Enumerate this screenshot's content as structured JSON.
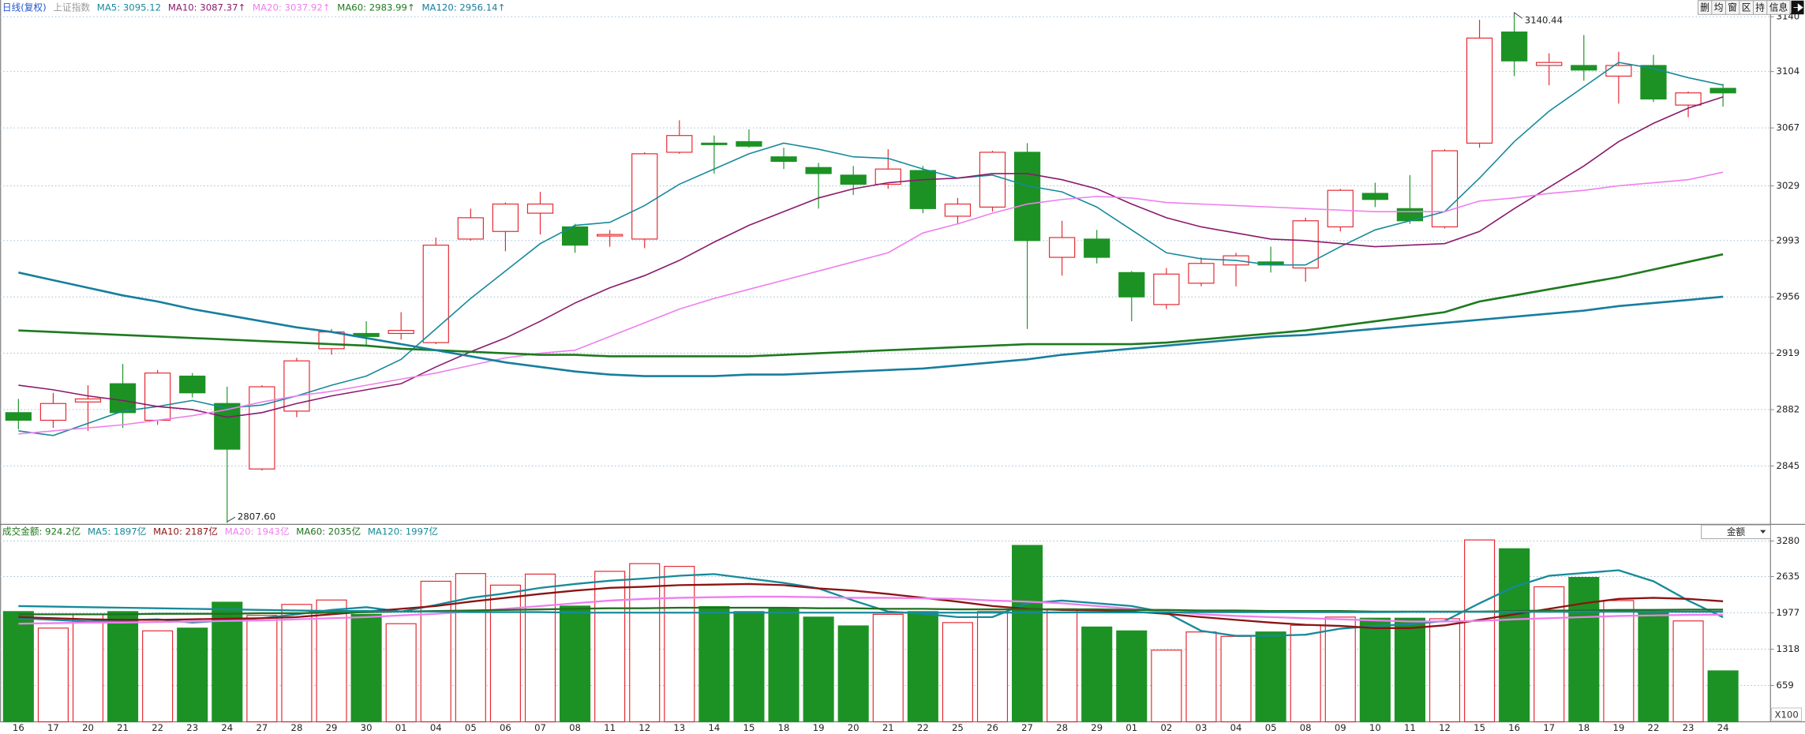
{
  "toolbar": {
    "buttons": [
      "删",
      "均",
      "窗",
      "区",
      "持",
      "信息"
    ]
  },
  "chart_data": [
    {
      "type": "candlestick",
      "period": "日线(复权)",
      "index_name": "上证指数",
      "categories": [
        "16",
        "17",
        "20",
        "21",
        "22",
        "23",
        "24",
        "27",
        "28",
        "29",
        "30",
        "01",
        "04",
        "05",
        "06",
        "07",
        "08",
        "11",
        "12",
        "13",
        "14",
        "15",
        "18",
        "19",
        "20",
        "21",
        "22",
        "25",
        "26",
        "27",
        "28",
        "29",
        "01",
        "02",
        "03",
        "04",
        "05",
        "08",
        "09",
        "10",
        "11",
        "12",
        "15",
        "16",
        "17",
        "18",
        "19",
        "22",
        "23",
        "24"
      ],
      "open": [
        2880,
        2875,
        2887,
        2899,
        2875,
        2904,
        2886,
        2843,
        2881,
        2922,
        2932,
        2932,
        2926,
        2994,
        2999,
        3011,
        3002,
        2996,
        2994,
        3051,
        3057,
        3058,
        3048,
        3041,
        3036,
        3030,
        3039,
        3009,
        3015,
        3051,
        2982,
        2994,
        2972,
        2951,
        2965,
        2977,
        2979,
        2975,
        3002,
        3024,
        3014,
        3002,
        3057,
        3130,
        3108,
        3108,
        3101,
        3108,
        3082,
        3093
      ],
      "high": [
        2889,
        2893,
        2898,
        2912,
        2908,
        2906,
        2897,
        2898,
        2916,
        2935,
        2940,
        2946,
        2995,
        3014,
        3018,
        3025,
        3004,
        3000,
        3051,
        3072,
        3062,
        3066,
        3054,
        3044,
        3042,
        3053,
        3042,
        3021,
        3052,
        3057,
        3006,
        3000,
        2973,
        2975,
        2982,
        2985,
        2989,
        3008,
        3027,
        3031,
        3036,
        3053,
        3138,
        3140.44,
        3116,
        3128,
        3117,
        3115,
        3091,
        3096
      ],
      "low": [
        2869,
        2870,
        2868,
        2870,
        2872,
        2890,
        2807.6,
        2842,
        2877,
        2918,
        2924,
        2928,
        2925,
        2993,
        2986,
        2997,
        2985,
        2989,
        2988,
        3050,
        3037,
        3054,
        3040,
        3014,
        3023,
        3027,
        3011,
        3004,
        3012,
        2935,
        2970,
        2978,
        2940,
        2948,
        2963,
        2963,
        2972,
        2966,
        2999,
        3015,
        3004,
        3001,
        3054,
        3101,
        3095,
        3098,
        3083,
        3084,
        3074,
        3081
      ],
      "close": [
        2875,
        2886,
        2889,
        2880,
        2906,
        2893,
        2856,
        2897,
        2914,
        2933,
        2930,
        2934,
        2990,
        3008,
        3017,
        3017,
        2990,
        2997,
        3050,
        3062,
        3056,
        3055,
        3045,
        3037,
        3030,
        3040,
        3014,
        3017,
        3051,
        2993,
        2995,
        2982,
        2956,
        2971,
        2978,
        2983,
        2977,
        3006,
        3026,
        3020,
        3006,
        3052,
        3126,
        3111,
        3110,
        3105,
        3108,
        3086,
        3090,
        3090
      ],
      "low_labels": [
        null,
        null,
        null,
        null,
        null,
        null,
        "2807.60",
        null,
        null,
        null,
        null,
        null,
        null,
        null,
        null,
        null,
        null,
        null,
        null,
        null,
        null,
        null,
        null,
        null,
        null,
        null,
        null,
        null,
        null,
        null,
        null,
        null,
        null,
        null,
        null,
        null,
        null,
        null,
        null,
        null,
        null,
        null,
        null,
        null,
        null,
        null,
        null,
        null,
        null,
        null
      ],
      "up_color": "#e3262f",
      "down_color": "#1c9224",
      "ylim": [
        2807,
        3151
      ],
      "yticks": [
        2845,
        2882,
        2919,
        2956,
        2993,
        3029,
        3067,
        3104,
        3140
      ],
      "grid": true,
      "series": [
        {
          "name": "MA5: 3095.12",
          "color": "#178a9a",
          "values": [
            2868,
            2865,
            2873,
            2881,
            2884,
            2888,
            2883,
            2885,
            2891,
            2898,
            2904,
            2915,
            2935,
            2955,
            2973,
            2991,
            3003,
            3005,
            3016,
            3030,
            3040,
            3050,
            3057,
            3053,
            3048,
            3047,
            3040,
            3034,
            3036,
            3029,
            3025,
            3015,
            3000,
            2985,
            2981,
            2980,
            2977,
            2977,
            2989,
            3000,
            3006,
            3012,
            3034,
            3058,
            3078,
            3094,
            3110,
            3106,
            3100,
            3095.12
          ]
        },
        {
          "name": "MA10: 3087.37↑",
          "color": "#8a1a6c",
          "values": [
            2898,
            2895,
            2891,
            2888,
            2884,
            2882,
            2877,
            2880,
            2886,
            2891,
            2895,
            2899,
            2910,
            2920,
            2929,
            2940,
            2952,
            2962,
            2970,
            2980,
            2992,
            3003,
            3012,
            3021,
            3027,
            3031,
            3033,
            3034,
            3037,
            3037,
            3033,
            3027,
            3017,
            3008,
            3002,
            2998,
            2994,
            2993,
            2991,
            2989,
            2990,
            2991,
            2999,
            3014,
            3028,
            3042,
            3058,
            3070,
            3080,
            3087.37
          ]
        },
        {
          "name": "MA20: 3037.92↑",
          "color": "#ee7fee",
          "values": [
            2866,
            2868,
            2870,
            2872,
            2875,
            2878,
            2882,
            2887,
            2891,
            2894,
            2898,
            2902,
            2906,
            2911,
            2916,
            2919,
            2921,
            2930,
            2939,
            2948,
            2955,
            2961,
            2967,
            2973,
            2979,
            2985,
            2998,
            3004,
            3011,
            3017,
            3020,
            3022,
            3021,
            3018,
            3017,
            3016,
            3015,
            3014,
            3013,
            3012,
            3012,
            3012,
            3019,
            3021,
            3024,
            3026,
            3029,
            3031,
            3033,
            3037.92
          ]
        },
        {
          "name": "MA60: 2983.99↑",
          "color": "#1e7a1e",
          "values": [
            2934,
            2933,
            2932,
            2931,
            2930,
            2929,
            2928,
            2927,
            2926,
            2925,
            2924,
            2922,
            2921,
            2920,
            2919,
            2918,
            2918,
            2917,
            2917,
            2917,
            2917,
            2917,
            2918,
            2919,
            2920,
            2921,
            2922,
            2923,
            2924,
            2925,
            2925,
            2925,
            2925,
            2926,
            2928,
            2930,
            2932,
            2934,
            2937,
            2940,
            2943,
            2946,
            2953,
            2957,
            2961,
            2965,
            2969,
            2974,
            2979,
            2983.99
          ]
        },
        {
          "name": "MA120: 2956.14↑",
          "color": "#177e9e",
          "values": [
            2972,
            2967,
            2962,
            2957,
            2953,
            2948,
            2944,
            2940,
            2936,
            2933,
            2929,
            2925,
            2921,
            2917,
            2913,
            2910,
            2907,
            2905,
            2904,
            2904,
            2904,
            2905,
            2905,
            2906,
            2907,
            2908,
            2909,
            2911,
            2913,
            2915,
            2918,
            2920,
            2922,
            2924,
            2926,
            2928,
            2930,
            2931,
            2933,
            2935,
            2937,
            2939,
            2941,
            2943,
            2945,
            2947,
            2950,
            2952,
            2954,
            2956.14
          ]
        }
      ]
    },
    {
      "type": "bar",
      "title": "成交金额: 924.2亿",
      "selector": "金额",
      "unit_label": "X100",
      "values": [
        2000,
        1700,
        1950,
        2000,
        1650,
        1700,
        2170,
        1930,
        2130,
        2210,
        1950,
        1780,
        2550,
        2690,
        2480,
        2680,
        2100,
        2730,
        2870,
        2820,
        2090,
        2000,
        2070,
        1900,
        1740,
        1950,
        2000,
        1800,
        2000,
        3200,
        2050,
        1720,
        1650,
        1300,
        1630,
        1550,
        1630,
        1750,
        1900,
        1880,
        1880,
        1870,
        3300,
        3140,
        2450,
        2620,
        2200,
        2000,
        1830,
        924.2
      ],
      "ylim": [
        0,
        3572
      ],
      "yticks": [
        659,
        1318,
        1977,
        2635,
        3280
      ],
      "grid": true,
      "series": [
        {
          "name": "MA5: 1897亿",
          "color": "#178a9a",
          "values": [
            1880,
            1850,
            1820,
            1840,
            1860,
            1800,
            1840,
            1880,
            1950,
            2030,
            2080,
            2000,
            2120,
            2250,
            2330,
            2430,
            2500,
            2560,
            2600,
            2650,
            2680,
            2600,
            2520,
            2420,
            2200,
            2000,
            1960,
            1900,
            1900,
            2150,
            2200,
            2150,
            2100,
            1980,
            1650,
            1560,
            1560,
            1580,
            1690,
            1740,
            1770,
            1830,
            2150,
            2450,
            2650,
            2700,
            2750,
            2550,
            2200,
            1897
          ]
        },
        {
          "name": "MA10: 2187亿",
          "color": "#8b1414",
          "values": [
            1900,
            1880,
            1860,
            1850,
            1850,
            1860,
            1870,
            1880,
            1900,
            1950,
            2000,
            2050,
            2100,
            2180,
            2250,
            2320,
            2380,
            2430,
            2450,
            2480,
            2490,
            2500,
            2480,
            2420,
            2380,
            2320,
            2250,
            2180,
            2100,
            2050,
            2030,
            2020,
            2000,
            1960,
            1900,
            1850,
            1800,
            1760,
            1740,
            1700,
            1700,
            1750,
            1850,
            1950,
            2050,
            2150,
            2230,
            2250,
            2230,
            2187
          ]
        },
        {
          "name": "MA20: 1943亿",
          "color": "#ee7fee",
          "values": [
            1780,
            1790,
            1800,
            1800,
            1810,
            1820,
            1830,
            1840,
            1860,
            1880,
            1900,
            1930,
            1960,
            2000,
            2050,
            2100,
            2150,
            2200,
            2230,
            2250,
            2260,
            2270,
            2270,
            2260,
            2250,
            2250,
            2240,
            2230,
            2200,
            2180,
            2150,
            2100,
            2050,
            2000,
            1950,
            1920,
            1900,
            1880,
            1860,
            1840,
            1820,
            1820,
            1830,
            1860,
            1880,
            1900,
            1920,
            1930,
            1940,
            1943
          ]
        },
        {
          "name": "MA60: 2035亿",
          "color": "#207020",
          "values": [
            1950,
            1950,
            1950,
            1950,
            1960,
            1960,
            1960,
            1970,
            1970,
            1980,
            1990,
            2000,
            2010,
            2020,
            2030,
            2040,
            2050,
            2060,
            2060,
            2070,
            2070,
            2070,
            2070,
            2060,
            2060,
            2050,
            2050,
            2040,
            2040,
            2040,
            2040,
            2040,
            2030,
            2030,
            2020,
            2020,
            2010,
            2010,
            2010,
            2000,
            2000,
            2000,
            2000,
            2010,
            2020,
            2020,
            2030,
            2030,
            2035,
            2035
          ]
        },
        {
          "name": "MA120: 1997亿",
          "color": "#178a9a",
          "values": [
            2100,
            2090,
            2080,
            2070,
            2060,
            2050,
            2040,
            2030,
            2020,
            2010,
            2010,
            2000,
            2000,
            1990,
            1990,
            1990,
            1980,
            1980,
            1980,
            1980,
            1980,
            1980,
            1980,
            1980,
            1980,
            1980,
            1980,
            1980,
            1980,
            1980,
            1985,
            1985,
            1985,
            1985,
            1990,
            1990,
            1990,
            1990,
            1990,
            1990,
            1995,
            1995,
            1995,
            1995,
            1995,
            1997,
            1997,
            1997,
            1997,
            1997
          ]
        }
      ]
    }
  ]
}
